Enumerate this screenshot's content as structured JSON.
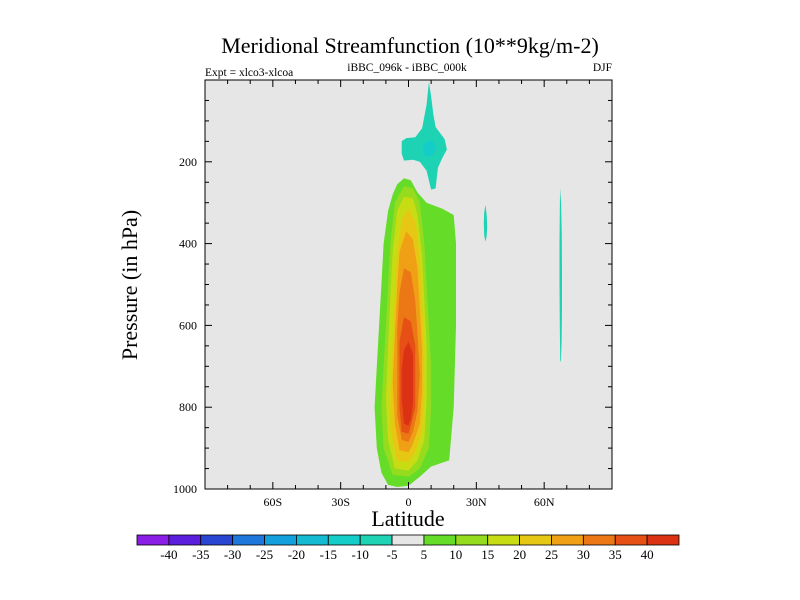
{
  "chart_data": {
    "type": "heatmap",
    "title": "Meridional Streamfunction (10**9kg/m-2)",
    "left_annotation": "Expt = xlco3-xlcoa",
    "center_annotation": "iBBC_096k - iBBC_000k",
    "right_annotation": "DJF",
    "xlabel": "Latitude",
    "ylabel": "Pressure (in hPa)",
    "xlim": [
      -90,
      90
    ],
    "ylim": [
      1000,
      0
    ],
    "xticks": [
      {
        "value": -60,
        "label": "60S"
      },
      {
        "value": -30,
        "label": "30S"
      },
      {
        "value": 0,
        "label": "0"
      },
      {
        "value": 30,
        "label": "30N"
      },
      {
        "value": 60,
        "label": "60N"
      }
    ],
    "yticks": [
      {
        "value": 200,
        "label": "200"
      },
      {
        "value": 400,
        "label": "400"
      },
      {
        "value": 600,
        "label": "600"
      },
      {
        "value": 800,
        "label": "800"
      },
      {
        "value": 1000,
        "label": "1000"
      }
    ],
    "background_color": "#e6e6e6",
    "colorbar": {
      "levels": [
        "-40",
        "-35",
        "-30",
        "-25",
        "-20",
        "-15",
        "-10",
        "-5",
        "5",
        "10",
        "15",
        "20",
        "25",
        "30",
        "35",
        "40"
      ],
      "colors": [
        "#8a1ee6",
        "#5a1edc",
        "#2846d2",
        "#1e78dc",
        "#14a0dc",
        "#14b9d2",
        "#14cdc8",
        "#1ed2b4",
        "#e6e6e6",
        "#64dc28",
        "#96dc1e",
        "#c8dc14",
        "#e6c814",
        "#f0a014",
        "#eb7814",
        "#e65014",
        "#dc3214"
      ]
    },
    "contours": [
      {
        "value": 5,
        "color": "#64dc28",
        "points": [
          [
            -9,
            990
          ],
          [
            -12,
            960
          ],
          [
            -14,
            900
          ],
          [
            -15,
            800
          ],
          [
            -14,
            700
          ],
          [
            -13,
            600
          ],
          [
            -12,
            500
          ],
          [
            -11,
            400
          ],
          [
            -9,
            320
          ],
          [
            -7,
            280
          ],
          [
            -5,
            255
          ],
          [
            -2,
            240
          ],
          [
            1,
            245
          ],
          [
            4,
            275
          ],
          [
            8,
            300
          ],
          [
            15,
            315
          ],
          [
            20,
            330
          ],
          [
            21,
            400
          ],
          [
            21,
            600
          ],
          [
            20,
            800
          ],
          [
            18,
            930
          ],
          [
            10,
            945
          ],
          [
            5,
            970
          ],
          [
            0,
            992
          ],
          [
            -5,
            995
          ]
        ]
      },
      {
        "value": 10,
        "color": "#96dc1e",
        "points": [
          [
            -7,
            965
          ],
          [
            -11,
            900
          ],
          [
            -12,
            800
          ],
          [
            -11,
            700
          ],
          [
            -10,
            600
          ],
          [
            -9,
            500
          ],
          [
            -8,
            400
          ],
          [
            -6,
            300
          ],
          [
            -2,
            260
          ],
          [
            2,
            265
          ],
          [
            5,
            300
          ],
          [
            7,
            400
          ],
          [
            8,
            500
          ],
          [
            9,
            600
          ],
          [
            10,
            700
          ],
          [
            10,
            800
          ],
          [
            9,
            900
          ],
          [
            5,
            950
          ],
          [
            0,
            970
          ]
        ]
      },
      {
        "value": 15,
        "color": "#c8dc14",
        "points": [
          [
            -6,
            950
          ],
          [
            -9,
            880
          ],
          [
            -10,
            780
          ],
          [
            -9,
            650
          ],
          [
            -8,
            530
          ],
          [
            -7,
            420
          ],
          [
            -5,
            320
          ],
          [
            -2,
            285
          ],
          [
            2,
            290
          ],
          [
            4,
            330
          ],
          [
            6,
            430
          ],
          [
            7,
            540
          ],
          [
            8,
            650
          ],
          [
            8,
            780
          ],
          [
            7,
            880
          ],
          [
            4,
            930
          ],
          [
            0,
            955
          ]
        ]
      },
      {
        "value": 20,
        "color": "#e6c814",
        "points": [
          [
            -5,
            930
          ],
          [
            -8,
            860
          ],
          [
            -8,
            760
          ],
          [
            -7,
            640
          ],
          [
            -6,
            520
          ],
          [
            -5,
            420
          ],
          [
            -3,
            340
          ],
          [
            0,
            315
          ],
          [
            3,
            345
          ],
          [
            5,
            430
          ],
          [
            6,
            540
          ],
          [
            7,
            650
          ],
          [
            7,
            770
          ],
          [
            6,
            860
          ],
          [
            3,
            910
          ],
          [
            0,
            935
          ]
        ]
      },
      {
        "value": 25,
        "color": "#f0a014",
        "points": [
          [
            -4,
            905
          ],
          [
            -6,
            840
          ],
          [
            -7,
            740
          ],
          [
            -6,
            620
          ],
          [
            -5,
            510
          ],
          [
            -4,
            420
          ],
          [
            -1,
            370
          ],
          [
            2,
            390
          ],
          [
            4,
            460
          ],
          [
            5,
            560
          ],
          [
            6,
            660
          ],
          [
            6,
            760
          ],
          [
            5,
            840
          ],
          [
            2,
            890
          ],
          [
            0,
            910
          ]
        ]
      },
      {
        "value": 30,
        "color": "#eb7814",
        "points": [
          [
            -3,
            880
          ],
          [
            -5,
            820
          ],
          [
            -5,
            720
          ],
          [
            -5,
            610
          ],
          [
            -4,
            520
          ],
          [
            -2,
            460
          ],
          [
            1,
            470
          ],
          [
            3,
            540
          ],
          [
            4,
            620
          ],
          [
            5,
            720
          ],
          [
            4,
            810
          ],
          [
            2,
            860
          ],
          [
            0,
            885
          ]
        ]
      },
      {
        "value": 35,
        "color": "#e65014",
        "points": [
          [
            -3,
            860
          ],
          [
            -4,
            800
          ],
          [
            -4,
            720
          ],
          [
            -4,
            640
          ],
          [
            -2,
            580
          ],
          [
            1,
            590
          ],
          [
            3,
            650
          ],
          [
            3,
            730
          ],
          [
            3,
            800
          ],
          [
            1,
            845
          ],
          [
            0,
            865
          ]
        ]
      },
      {
        "value": 40,
        "color": "#dc3214",
        "points": [
          [
            -2,
            840
          ],
          [
            -3,
            780
          ],
          [
            -3,
            710
          ],
          [
            -2,
            660
          ],
          [
            0,
            640
          ],
          [
            2,
            670
          ],
          [
            2,
            730
          ],
          [
            2,
            790
          ],
          [
            1,
            830
          ],
          [
            0,
            845
          ]
        ]
      },
      {
        "value": -5,
        "color": "#1ed2b4",
        "points": [
          [
            -3,
            150
          ],
          [
            -1,
            142
          ],
          [
            3,
            140
          ],
          [
            6,
            118
          ],
          [
            7,
            90
          ],
          [
            8,
            60
          ],
          [
            9,
            5
          ],
          [
            10,
            40
          ],
          [
            11,
            85
          ],
          [
            12,
            115
          ],
          [
            16,
            145
          ],
          [
            17,
            170
          ],
          [
            15,
            190
          ],
          [
            13,
            215
          ],
          [
            12,
            265
          ],
          [
            10,
            268
          ],
          [
            8,
            222
          ],
          [
            5,
            200
          ],
          [
            2,
            195
          ],
          [
            -2,
            197
          ],
          [
            -3,
            180
          ]
        ]
      },
      {
        "value": -10,
        "color": "#14cdc8",
        "points": [
          [
            7,
            155
          ],
          [
            9,
            148
          ],
          [
            11,
            150
          ],
          [
            12,
            165
          ],
          [
            11,
            182
          ],
          [
            9,
            188
          ],
          [
            7,
            182
          ],
          [
            6,
            168
          ]
        ]
      },
      {
        "value": -5,
        "color": "#1ed2b4",
        "points": [
          [
            34,
            305
          ],
          [
            34.6,
            330
          ],
          [
            34.8,
            360
          ],
          [
            34.5,
            385
          ],
          [
            34,
            395
          ],
          [
            33.5,
            380
          ],
          [
            33.3,
            350
          ],
          [
            33.5,
            325
          ]
        ]
      },
      {
        "value": -5,
        "color": "#1ed2b4",
        "points": [
          [
            67,
            265
          ],
          [
            67.5,
            300
          ],
          [
            67.8,
            380
          ],
          [
            67.9,
            470
          ],
          [
            67.9,
            560
          ],
          [
            67.7,
            640
          ],
          [
            67.4,
            690
          ],
          [
            67.1,
            685
          ],
          [
            66.9,
            600
          ],
          [
            66.8,
            500
          ],
          [
            66.8,
            400
          ],
          [
            66.9,
            320
          ],
          [
            67,
            280
          ]
        ]
      }
    ]
  }
}
